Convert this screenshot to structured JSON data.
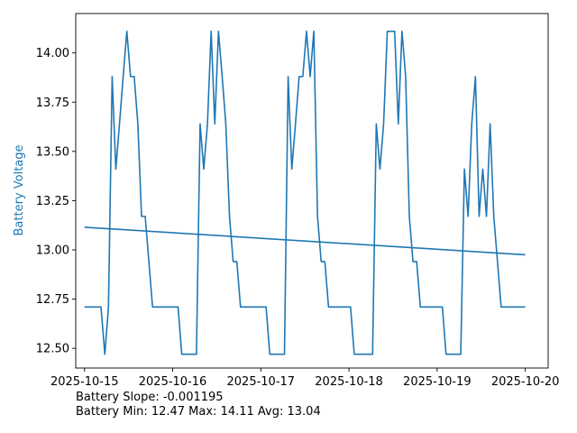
{
  "chart_data": {
    "type": "line",
    "xlabel": "",
    "ylabel": "Battery Voltage",
    "ylabel_color": "#1f77b4",
    "line_color": "#1f77b4",
    "grid": false,
    "x_domain": [
      "2025-10-14T21:36",
      "2025-10-20T06:14"
    ],
    "ylim": [
      12.4,
      14.2
    ],
    "x_ticks": [
      "2025-10-15",
      "2025-10-16",
      "2025-10-17",
      "2025-10-18",
      "2025-10-19",
      "2025-10-20"
    ],
    "y_ticks": [
      12.5,
      12.75,
      13.0,
      13.25,
      13.5,
      13.75,
      14.0
    ],
    "y_tick_labels": [
      "12.50",
      "12.75",
      "13.00",
      "13.25",
      "13.50",
      "13.75",
      "14.00"
    ],
    "series": [
      {
        "values": [
          [
            "2025-10-15T00:00",
            12.71
          ],
          [
            "2025-10-15T04:29",
            12.71
          ],
          [
            "2025-10-15T05:31",
            12.47
          ],
          [
            "2025-10-15T06:31",
            12.71
          ],
          [
            "2025-10-15T07:31",
            13.88
          ],
          [
            "2025-10-15T08:31",
            13.41
          ],
          [
            "2025-10-15T09:31",
            13.64
          ],
          [
            "2025-10-15T10:31",
            13.88
          ],
          [
            "2025-10-15T11:31",
            14.11
          ],
          [
            "2025-10-15T12:31",
            13.88
          ],
          [
            "2025-10-15T13:31",
            13.88
          ],
          [
            "2025-10-15T14:31",
            13.64
          ],
          [
            "2025-10-15T15:31",
            13.17
          ],
          [
            "2025-10-15T16:31",
            13.17
          ],
          [
            "2025-10-15T17:31",
            12.94
          ],
          [
            "2025-10-15T18:31",
            12.71
          ],
          [
            "2025-10-16T01:28",
            12.71
          ],
          [
            "2025-10-16T02:28",
            12.47
          ],
          [
            "2025-10-16T06:28",
            12.47
          ],
          [
            "2025-10-16T07:28",
            13.64
          ],
          [
            "2025-10-16T08:28",
            13.41
          ],
          [
            "2025-10-16T09:28",
            13.64
          ],
          [
            "2025-10-16T10:28",
            14.11
          ],
          [
            "2025-10-16T11:28",
            13.64
          ],
          [
            "2025-10-16T12:28",
            14.11
          ],
          [
            "2025-10-16T13:28",
            13.88
          ],
          [
            "2025-10-16T14:28",
            13.64
          ],
          [
            "2025-10-16T15:28",
            13.17
          ],
          [
            "2025-10-16T16:28",
            12.94
          ],
          [
            "2025-10-16T17:28",
            12.94
          ],
          [
            "2025-10-16T18:28",
            12.71
          ],
          [
            "2025-10-17T01:26",
            12.71
          ],
          [
            "2025-10-17T02:26",
            12.47
          ],
          [
            "2025-10-17T06:26",
            12.47
          ],
          [
            "2025-10-17T07:26",
            13.88
          ],
          [
            "2025-10-17T08:26",
            13.41
          ],
          [
            "2025-10-17T09:26",
            13.64
          ],
          [
            "2025-10-17T10:26",
            13.88
          ],
          [
            "2025-10-17T11:26",
            13.88
          ],
          [
            "2025-10-17T12:26",
            14.11
          ],
          [
            "2025-10-17T13:26",
            13.88
          ],
          [
            "2025-10-17T14:26",
            14.11
          ],
          [
            "2025-10-17T15:26",
            13.17
          ],
          [
            "2025-10-17T16:26",
            12.94
          ],
          [
            "2025-10-17T17:26",
            12.94
          ],
          [
            "2025-10-17T18:26",
            12.71
          ],
          [
            "2025-10-18T00:26",
            12.71
          ],
          [
            "2025-10-18T01:26",
            12.47
          ],
          [
            "2025-10-18T06:26",
            12.47
          ],
          [
            "2025-10-18T07:26",
            13.64
          ],
          [
            "2025-10-18T08:26",
            13.41
          ],
          [
            "2025-10-18T09:26",
            13.64
          ],
          [
            "2025-10-18T10:26",
            14.11
          ],
          [
            "2025-10-18T12:26",
            14.11
          ],
          [
            "2025-10-18T13:26",
            13.64
          ],
          [
            "2025-10-18T14:26",
            14.11
          ],
          [
            "2025-10-18T15:26",
            13.88
          ],
          [
            "2025-10-18T16:26",
            13.17
          ],
          [
            "2025-10-18T17:26",
            12.94
          ],
          [
            "2025-10-18T18:26",
            12.94
          ],
          [
            "2025-10-18T19:26",
            12.71
          ],
          [
            "2025-10-19T01:26",
            12.71
          ],
          [
            "2025-10-19T02:26",
            12.47
          ],
          [
            "2025-10-19T06:26",
            12.47
          ],
          [
            "2025-10-19T07:26",
            13.41
          ],
          [
            "2025-10-19T08:26",
            13.17
          ],
          [
            "2025-10-19T09:26",
            13.64
          ],
          [
            "2025-10-19T10:26",
            13.88
          ],
          [
            "2025-10-19T11:26",
            13.17
          ],
          [
            "2025-10-19T12:26",
            13.41
          ],
          [
            "2025-10-19T13:26",
            13.17
          ],
          [
            "2025-10-19T14:26",
            13.64
          ],
          [
            "2025-10-19T15:26",
            13.17
          ],
          [
            "2025-10-19T16:26",
            12.94
          ],
          [
            "2025-10-19T17:26",
            12.71
          ],
          [
            "2025-10-20T00:00",
            12.71
          ]
        ]
      },
      {
        "values": [
          [
            "2025-10-15T00:00",
            13.115
          ],
          [
            "2025-10-20T00:00",
            12.975
          ]
        ]
      }
    ]
  },
  "footer": {
    "slope_text": "Battery Slope: -0.001195",
    "stats_text": "Battery Min: 12.47 Max: 14.11 Avg: 13.04"
  }
}
